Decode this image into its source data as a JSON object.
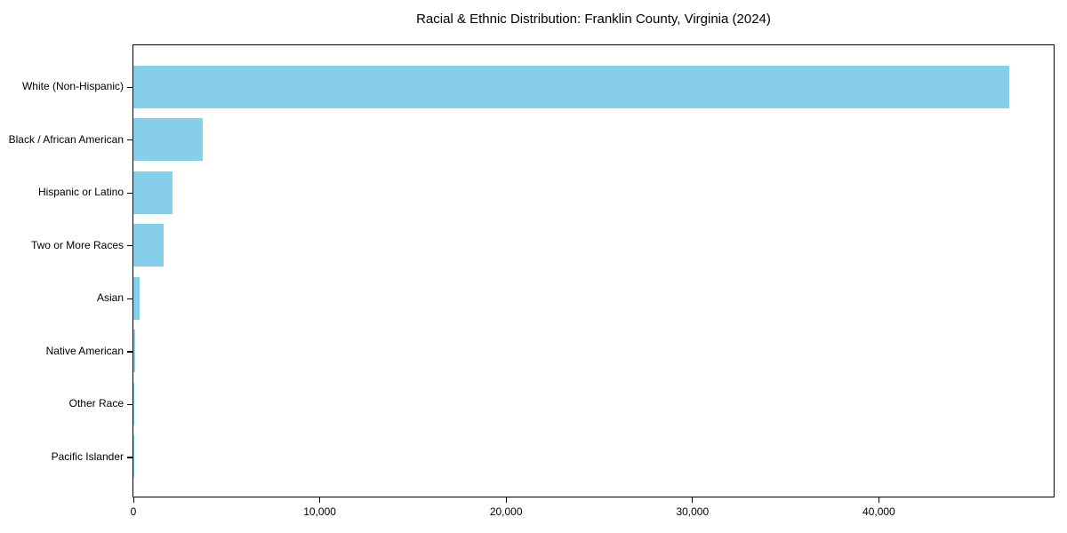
{
  "chart_data": {
    "type": "bar",
    "orientation": "horizontal",
    "title": "Racial & Ethnic Distribution: Franklin County, Virginia (2024)",
    "categories": [
      "White (Non-Hispanic)",
      "Black / African American",
      "Hispanic or Latino",
      "Two or More Races",
      "Asian",
      "Native American",
      "Other Race",
      "Pacific Islander"
    ],
    "values": [
      47000,
      3700,
      2100,
      1600,
      330,
      100,
      40,
      20
    ],
    "xlabel": "",
    "ylabel": "",
    "xlim": [
      0,
      49380
    ],
    "x_ticks": [
      0,
      10000,
      20000,
      30000,
      40000
    ],
    "x_tick_labels": [
      "0",
      "10,000",
      "20,000",
      "30,000",
      "40,000"
    ],
    "bar_color": "#87CEEB",
    "axis_color": "#000000",
    "text_color": "#000000",
    "background": "#ffffff",
    "grid": false,
    "legend": "none"
  }
}
